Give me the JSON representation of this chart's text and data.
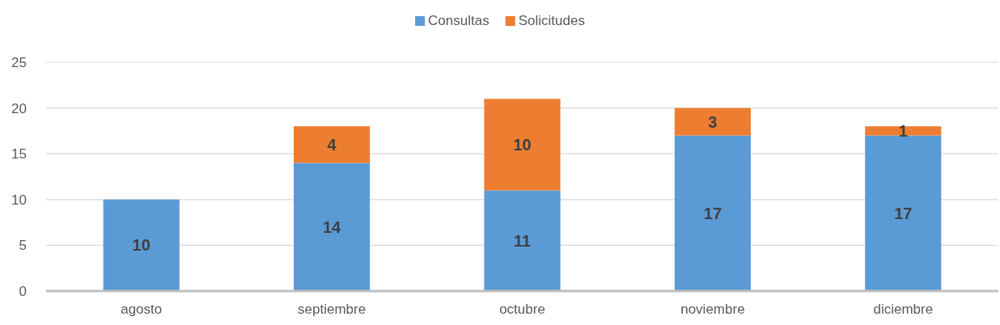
{
  "chart_data": {
    "type": "bar",
    "stacked": true,
    "categories": [
      "agosto",
      "septiembre",
      "octubre",
      "noviembre",
      "diciembre"
    ],
    "series": [
      {
        "name": "Consultas",
        "color": "#5b9bd5",
        "values": [
          10,
          14,
          11,
          17,
          17
        ]
      },
      {
        "name": "Solicitudes",
        "color": "#ed7d31",
        "values": [
          null,
          4,
          10,
          3,
          1
        ]
      }
    ],
    "ylim": [
      0,
      25
    ],
    "yticks": [
      0,
      5,
      10,
      15,
      20,
      25
    ],
    "grid": "y",
    "legend": "top",
    "data_labels": true
  }
}
